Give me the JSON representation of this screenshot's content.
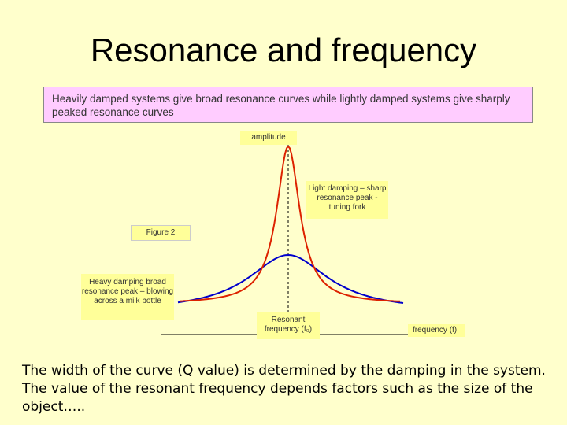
{
  "slide": {
    "title": "Resonance and frequency",
    "intro": "Heavily damped systems give broad resonance curves while lightly damped systems give sharply peaked resonance curves",
    "caption": "The width of the curve (Q value) is determined by the damping in the system. The value of the resonant frequency depends factors such as the size of the object….."
  },
  "diagram": {
    "amplitude_label": "amplitude",
    "light_damping_label": "Light damping – sharp resonance peak - tuning fork",
    "figure_label": "Figure 2",
    "heavy_damping_label": "Heavy damping broad resonance peak – blowing across a milk bottle",
    "resonant_label": "Resonant frequency (f₀)",
    "frequency_label": "frequency (f)",
    "colors": {
      "light_damping_curve": "#dd2200",
      "heavy_damping_curve": "#0000cc",
      "axis": "#000000",
      "label_background": "#ffff99",
      "slide_background": "#ffffcc",
      "intro_background": "#ffccff"
    }
  }
}
